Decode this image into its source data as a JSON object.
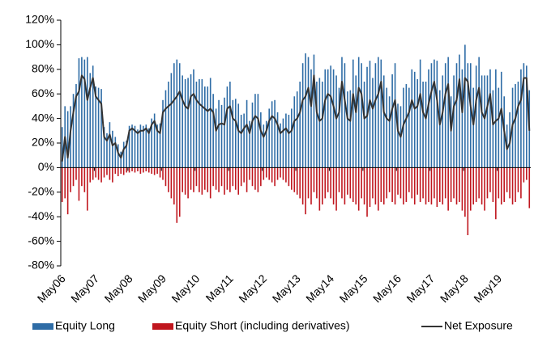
{
  "chart_data": {
    "type": "bar",
    "categories": [
      "May06",
      null,
      null,
      null,
      null,
      null,
      null,
      null,
      null,
      null,
      null,
      null,
      "May07",
      null,
      null,
      null,
      null,
      null,
      null,
      null,
      null,
      null,
      null,
      null,
      "May08",
      null,
      null,
      null,
      null,
      null,
      null,
      null,
      null,
      null,
      null,
      null,
      "May09",
      null,
      null,
      null,
      null,
      null,
      null,
      null,
      null,
      null,
      null,
      null,
      "May10",
      null,
      null,
      null,
      null,
      null,
      null,
      null,
      null,
      null,
      null,
      null,
      "May11",
      null,
      null,
      null,
      null,
      null,
      null,
      null,
      null,
      null,
      null,
      null,
      "May12",
      null,
      null,
      null,
      null,
      null,
      null,
      null,
      null,
      null,
      null,
      null,
      "May13",
      null,
      null,
      null,
      null,
      null,
      null,
      null,
      null,
      null,
      null,
      null,
      "May14",
      null,
      null,
      null,
      null,
      null,
      null,
      null,
      null,
      null,
      null,
      null,
      "May15",
      null,
      null,
      null,
      null,
      null,
      null,
      null,
      null,
      null,
      null,
      null,
      "May16",
      null,
      null,
      null,
      null,
      null,
      null,
      null,
      null,
      null,
      null,
      null,
      "May17",
      null,
      null,
      null,
      null,
      null,
      null,
      null,
      null,
      null,
      null,
      null,
      "May18",
      null,
      null,
      null,
      null,
      null,
      null,
      null,
      null,
      null,
      null,
      null,
      "May19",
      null,
      null,
      null,
      null,
      null,
      null,
      null,
      null,
      null,
      null,
      null
    ],
    "series": [
      {
        "name": "Equity Long",
        "type": "bar",
        "color": "#2e6ca6",
        "values": [
          33,
          50,
          46,
          50,
          60,
          68,
          89,
          90,
          88,
          90,
          77,
          83,
          66,
          65,
          64,
          33,
          28,
          37,
          30,
          25,
          19,
          13,
          21,
          22,
          34,
          35,
          34,
          31,
          35,
          34,
          35,
          32,
          40,
          44,
          35,
          36,
          55,
          63,
          70,
          77,
          85,
          88,
          85,
          75,
          72,
          73,
          76,
          80,
          70,
          72,
          72,
          66,
          66,
          73,
          60,
          48,
          55,
          51,
          57,
          66,
          70,
          55,
          56,
          52,
          43,
          44,
          55,
          38,
          53,
          60,
          60,
          45,
          35,
          38,
          48,
          54,
          55,
          45,
          36,
          40,
          44,
          43,
          48,
          58,
          62,
          70,
          85,
          93,
          90,
          80,
          92,
          70,
          73,
          70,
          80,
          80,
          83,
          80,
          75,
          65,
          90,
          85,
          62,
          63,
          88,
          75,
          90,
          85,
          70,
          82,
          87,
          73,
          85,
          90,
          88,
          75,
          65,
          58,
          76,
          85,
          52,
          50,
          65,
          68,
          65,
          80,
          78,
          72,
          88,
          70,
          70,
          80,
          85,
          88,
          87,
          63,
          75,
          85,
          90,
          58,
          75,
          85,
          92,
          80,
          100,
          85,
          85,
          65,
          83,
          90,
          75,
          75,
          75,
          80,
          63,
          80,
          65,
          78,
          58,
          35,
          45,
          65,
          68,
          70,
          80,
          85,
          83,
          63
        ]
      },
      {
        "name": "Equity Short (including derivatives)",
        "type": "bar",
        "color": "#c0161e",
        "values": [
          -28,
          -25,
          -38,
          -20,
          -15,
          -10,
          -27,
          -15,
          -20,
          -35,
          -12,
          -10,
          -8,
          -10,
          -12,
          -8,
          -6,
          -10,
          -12,
          -5,
          -7,
          -5,
          -6,
          -4,
          -4,
          -3,
          -4,
          -3,
          -5,
          -4,
          -3,
          -4,
          -5,
          -6,
          -5,
          -8,
          -10,
          -15,
          -20,
          -25,
          -30,
          -45,
          -40,
          -20,
          -22,
          -25,
          -18,
          -20,
          -15,
          -20,
          -22,
          -18,
          -20,
          -25,
          -15,
          -18,
          -20,
          -15,
          -22,
          -18,
          -20,
          -15,
          -18,
          -22,
          -15,
          -12,
          -20,
          -10,
          -15,
          -18,
          -20,
          -15,
          -10,
          -8,
          -10,
          -12,
          -15,
          -10,
          -8,
          -10,
          -12,
          -15,
          -18,
          -20,
          -22,
          -25,
          -30,
          -38,
          -25,
          -30,
          -20,
          -25,
          -35,
          -30,
          -25,
          -20,
          -25,
          -30,
          -35,
          -20,
          -25,
          -30,
          -22,
          -25,
          -28,
          -30,
          -35,
          -25,
          -30,
          -40,
          -32,
          -25,
          -30,
          -35,
          -28,
          -30,
          -25,
          -20,
          -28,
          -30,
          -22,
          -25,
          -30,
          -28,
          -20,
          -25,
          -30,
          -22,
          -28,
          -25,
          -30,
          -28,
          -30,
          -25,
          -32,
          -28,
          -30,
          -25,
          -35,
          -28,
          -25,
          -30,
          -28,
          -35,
          -40,
          -55,
          -35,
          -30,
          -28,
          -25,
          -30,
          -35,
          -25,
          -20,
          -28,
          -42,
          -25,
          -30,
          -28,
          -20,
          -25,
          -30,
          -28,
          -20,
          -25,
          -12,
          -10,
          -33
        ]
      },
      {
        "name": "Net Exposure",
        "type": "line",
        "color": "#333333",
        "values": [
          5,
          25,
          8,
          30,
          45,
          58,
          62,
          75,
          72,
          55,
          65,
          73,
          58,
          55,
          52,
          25,
          22,
          27,
          18,
          20,
          12,
          8,
          15,
          18,
          30,
          32,
          30,
          28,
          30,
          30,
          32,
          28,
          35,
          38,
          30,
          28,
          45,
          48,
          50,
          52,
          55,
          58,
          62,
          55,
          50,
          48,
          58,
          60,
          55,
          52,
          50,
          48,
          46,
          48,
          45,
          30,
          35,
          36,
          35,
          48,
          50,
          40,
          38,
          30,
          28,
          32,
          35,
          28,
          38,
          42,
          40,
          30,
          25,
          30,
          38,
          42,
          40,
          35,
          28,
          30,
          32,
          28,
          30,
          38,
          40,
          45,
          55,
          58,
          65,
          50,
          75,
          45,
          38,
          40,
          55,
          60,
          58,
          50,
          40,
          45,
          70,
          55,
          40,
          38,
          60,
          45,
          65,
          60,
          40,
          42,
          55,
          48,
          55,
          60,
          70,
          45,
          40,
          38,
          48,
          55,
          30,
          25,
          35,
          40,
          45,
          55,
          48,
          50,
          60,
          45,
          40,
          52,
          62,
          70,
          55,
          35,
          45,
          60,
          68,
          30,
          50,
          55,
          72,
          45,
          73,
          70,
          50,
          35,
          55,
          65,
          45,
          40,
          50,
          60,
          35,
          38,
          40,
          48,
          30,
          15,
          20,
          35,
          40,
          50,
          55,
          73,
          73,
          30
        ]
      }
    ],
    "ylim": [
      -80,
      120
    ],
    "yticks": [
      {
        "value": -80,
        "label": "-80%"
      },
      {
        "value": -60,
        "label": "-60%"
      },
      {
        "value": -40,
        "label": "-40%"
      },
      {
        "value": -20,
        "label": "-20%"
      },
      {
        "value": 0,
        "label": "0%"
      },
      {
        "value": 20,
        "label": "20%"
      },
      {
        "value": 40,
        "label": "40%"
      },
      {
        "value": 60,
        "label": "60%"
      },
      {
        "value": 80,
        "label": "80%"
      },
      {
        "value": 100,
        "label": "100%"
      },
      {
        "value": 120,
        "label": "120%"
      }
    ],
    "legend": "bottom"
  }
}
